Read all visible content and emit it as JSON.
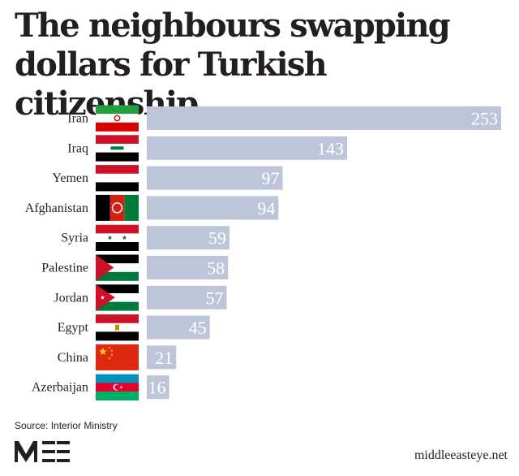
{
  "page": {
    "title": "The neighbours swapping dollars for Turkish citizenship",
    "source": "Source: Interior Ministry",
    "site": "middleeasteye.net",
    "logo_text": "MEE"
  },
  "colors": {
    "bar": "#bdc6d8",
    "value_text": "#ffffff",
    "text": "#231f20",
    "logo": "#231f20"
  },
  "chart_data": {
    "type": "bar",
    "orientation": "horizontal",
    "title": "The neighbours swapping dollars for Turkish citizenship",
    "categories": [
      "Iran",
      "Iraq",
      "Yemen",
      "Afghanistan",
      "Syria",
      "Palestine",
      "Jordan",
      "Egypt",
      "China",
      "Azerbaijan"
    ],
    "values": [
      253,
      143,
      97,
      94,
      59,
      58,
      57,
      45,
      21,
      16
    ],
    "flags": [
      "iran-flag-icon",
      "iraq-flag-icon",
      "yemen-flag-icon",
      "afghanistan-flag-icon",
      "syria-flag-icon",
      "palestine-flag-icon",
      "jordan-flag-icon",
      "egypt-flag-icon",
      "china-flag-icon",
      "azerbaijan-flag-icon"
    ],
    "xlim": [
      0,
      253
    ],
    "grid": false,
    "legend": "none",
    "data_labels": "inside-end"
  }
}
